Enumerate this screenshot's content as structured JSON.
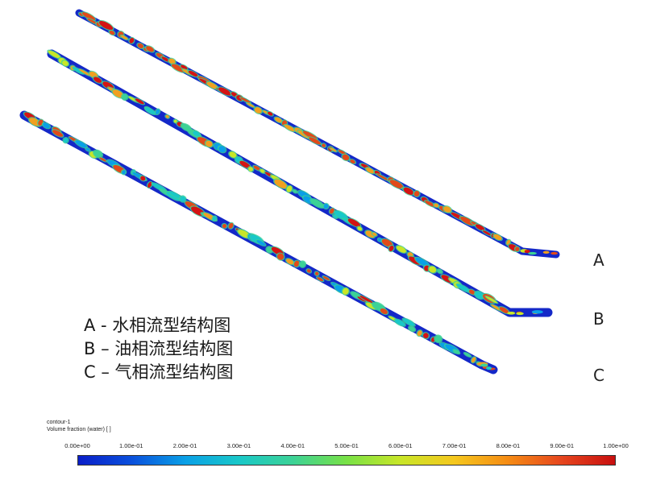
{
  "pipes": [
    {
      "label": "A"
    },
    {
      "label": "B"
    },
    {
      "label": "C"
    }
  ],
  "legend": {
    "items": [
      "A - 水相流型结构图",
      "B – 油相流型结构图",
      "C – 气相流型结构图"
    ]
  },
  "colorbar": {
    "title": "contour-1",
    "subtitle": "Volume fraction (water) [ ]",
    "ticks": [
      "0.00e+00",
      "1.00e-01",
      "2.00e-01",
      "3.00e-01",
      "4.00e-01",
      "5.00e-01",
      "6.00e-01",
      "7.00e-01",
      "8.00e-01",
      "9.00e-01",
      "1.00e+00"
    ],
    "colors": [
      "#0a1ec8",
      "#0a50dc",
      "#0aa0e6",
      "#19c8c8",
      "#3cd296",
      "#78e146",
      "#c8e628",
      "#f5c81e",
      "#f58c14",
      "#e6461e",
      "#c80f0f"
    ]
  }
}
